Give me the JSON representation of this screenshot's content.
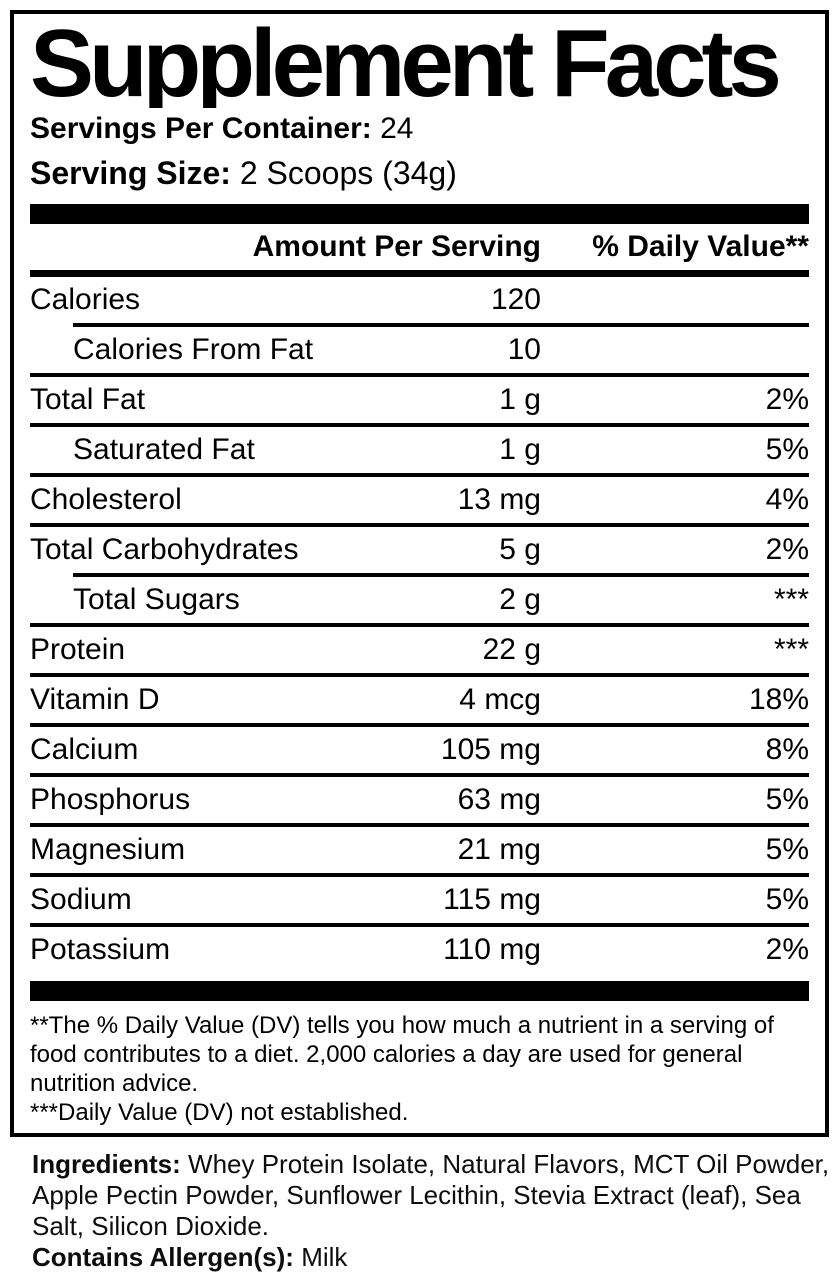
{
  "colors": {
    "ink": "#000000",
    "paper": "#ffffff"
  },
  "panel": {
    "title": "Supplement Facts",
    "servings_per_container_label": "Servings Per Container:",
    "servings_per_container_value": "24",
    "serving_size_label": "Serving Size:",
    "serving_size_value": "2 Scoops (34g)"
  },
  "table": {
    "header": {
      "amount_col": "Amount Per Serving",
      "dv_col": "% Daily Value**"
    },
    "rows": [
      {
        "name": "Calories",
        "amount": "120",
        "dv": ""
      },
      {
        "name": "Calories From Fat",
        "amount": "10",
        "dv": ""
      },
      {
        "name": "Total Fat",
        "amount": "1 g",
        "dv": "2%"
      },
      {
        "name": "Saturated Fat",
        "amount": "1 g",
        "dv": "5%"
      },
      {
        "name": "Cholesterol",
        "amount": "13 mg",
        "dv": "4%"
      },
      {
        "name": "Total Carbohydrates",
        "amount": "5 g",
        "dv": "2%"
      },
      {
        "name": "Total Sugars",
        "amount": "2 g",
        "dv": "***"
      },
      {
        "name": "Protein",
        "amount": "22 g",
        "dv": "***"
      },
      {
        "name": "Vitamin D",
        "amount": "4 mcg",
        "dv": "18%"
      },
      {
        "name": "Calcium",
        "amount": "105 mg",
        "dv": "8%"
      },
      {
        "name": "Phosphorus",
        "amount": "63 mg",
        "dv": "5%"
      },
      {
        "name": "Magnesium",
        "amount": "21 mg",
        "dv": "5%"
      },
      {
        "name": "Sodium",
        "amount": "115 mg",
        "dv": "5%"
      },
      {
        "name": "Potassium",
        "amount": "110 mg",
        "dv": "2%"
      }
    ]
  },
  "footnotes": {
    "daily_value": "**The % Daily Value (DV) tells you how much a nutrient in a serving of food contributes to a diet. 2,000 calories a day are used for general nutrition advice.",
    "not_established": "***Daily Value (DV) not established."
  },
  "ingredients": {
    "label": "Ingredients:",
    "list": "Whey Protein Isolate, Natural Flavors, MCT Oil Powder, Apple Pectin Powder, Sunflower Lecithin, Stevia Extract (leaf), Sea Salt, Silicon Dioxide.",
    "allergen_label": "Contains Allergen(s):",
    "allergen_value": "Milk"
  }
}
